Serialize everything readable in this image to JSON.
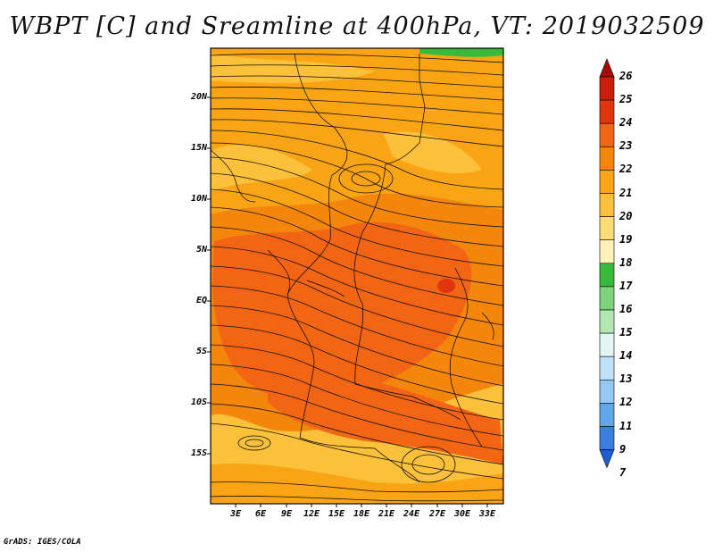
{
  "title": "WBPT [C] and Sreamline at 400hPa, VT: 2019032509",
  "footer": "GrADS: IGES/COLA",
  "lat_labels": [
    "20N",
    "15N",
    "10N",
    "5N",
    "EQ",
    "5S",
    "10S",
    "15S"
  ],
  "lon_labels": [
    "3E",
    "6E",
    "9E",
    "12E",
    "15E",
    "18E",
    "21E",
    "24E",
    "27E",
    "30E",
    "33E"
  ],
  "colorbar": {
    "labels": [
      "26",
      "25",
      "24",
      "23",
      "22",
      "21",
      "20",
      "19",
      "18",
      "17",
      "16",
      "15",
      "14",
      "13",
      "12",
      "11",
      "9",
      "7"
    ],
    "colors": [
      "#a50a0a",
      "#c81e0a",
      "#e0350d",
      "#f26515",
      "#f5860c",
      "#f9a414",
      "#fbc13a",
      "#fbdb74",
      "#fdf2b8",
      "#3aba3a",
      "#7cd47c",
      "#b2e8b0",
      "#e2f6f4",
      "#bfe0f7",
      "#94c9f2",
      "#5fa6ea",
      "#3a7fde",
      "#1e5ed3"
    ]
  },
  "fill_colors": {
    "yellow": "#fbc13a",
    "light_orange": "#f9a414",
    "orange": "#f5860c",
    "dark_orange": "#f26515",
    "red": "#e0350d",
    "green": "#3aba3a"
  }
}
